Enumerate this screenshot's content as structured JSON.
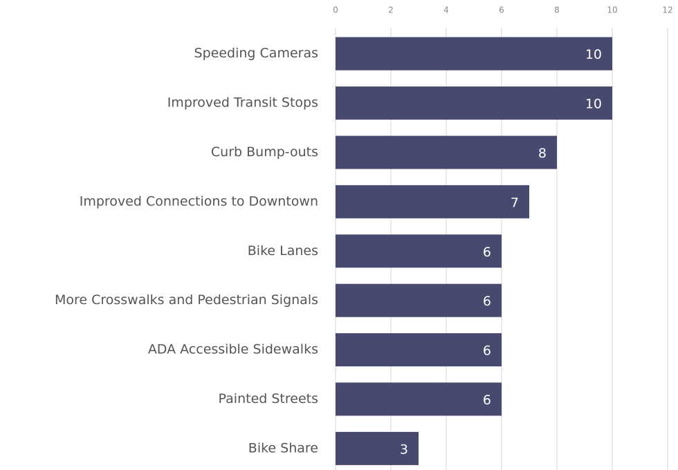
{
  "chart_data": {
    "type": "bar",
    "orientation": "horizontal",
    "categories": [
      "Speeding Cameras",
      "Improved Transit Stops",
      "Curb Bump-outs",
      "Improved Connections to Downtown",
      "Bike Lanes",
      "More Crosswalks and Pedestrian Signals",
      "ADA Accessible Sidewalks",
      "Painted Streets",
      "Bike Share"
    ],
    "values": [
      10,
      10,
      8,
      7,
      6,
      6,
      6,
      6,
      3
    ],
    "color": "#474a6e",
    "xlim": [
      0,
      12
    ],
    "xticks": [
      0,
      2,
      4,
      6,
      8,
      10,
      12
    ],
    "grid": true
  }
}
